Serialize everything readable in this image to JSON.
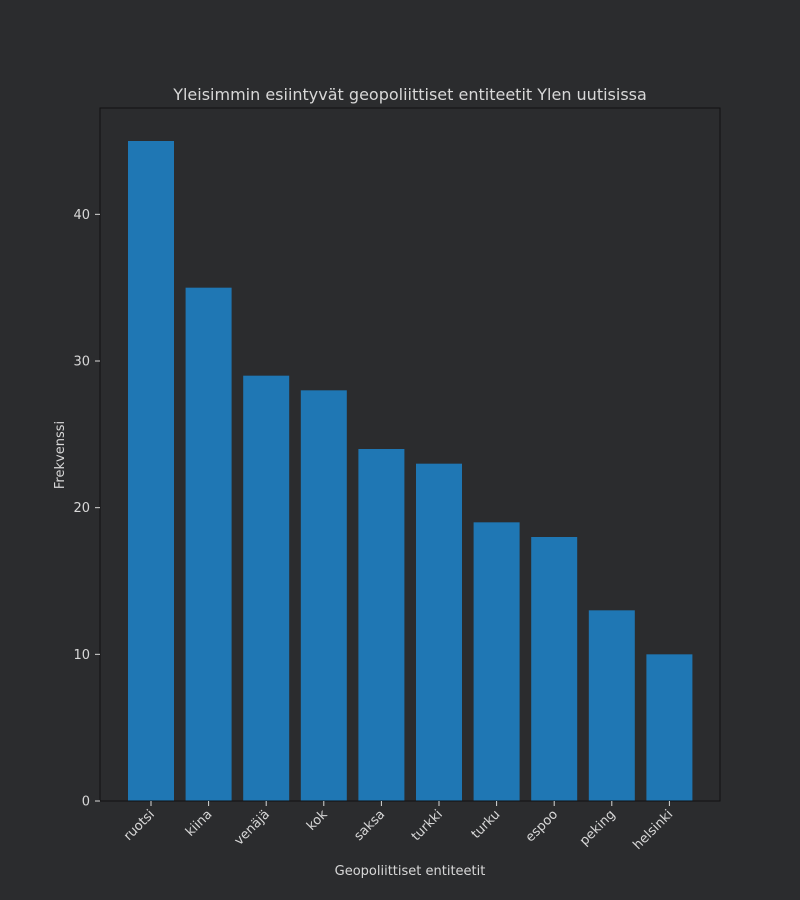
{
  "chart_data": {
    "type": "bar",
    "title": "Yleisimmin esiintyvät geopoliittiset entiteetit Ylen uutisissa",
    "xlabel": "Geopoliittiset entiteetit",
    "ylabel": "Frekvenssi",
    "categories": [
      "ruotsi",
      "kiina",
      "venäjä",
      "kok",
      "saksa",
      "turkki",
      "turku",
      "espoo",
      "peking",
      "helsinki"
    ],
    "values": [
      45,
      35,
      29,
      28,
      24,
      23,
      19,
      18,
      13,
      10
    ],
    "ylim": [
      0,
      47.25
    ],
    "yticks": [
      0,
      10,
      20,
      30,
      40
    ],
    "bar_color": "#1f77b4",
    "background_color": "#2b2c2e",
    "text_color": "#d8d8d8",
    "grid": false,
    "legend": "none"
  }
}
